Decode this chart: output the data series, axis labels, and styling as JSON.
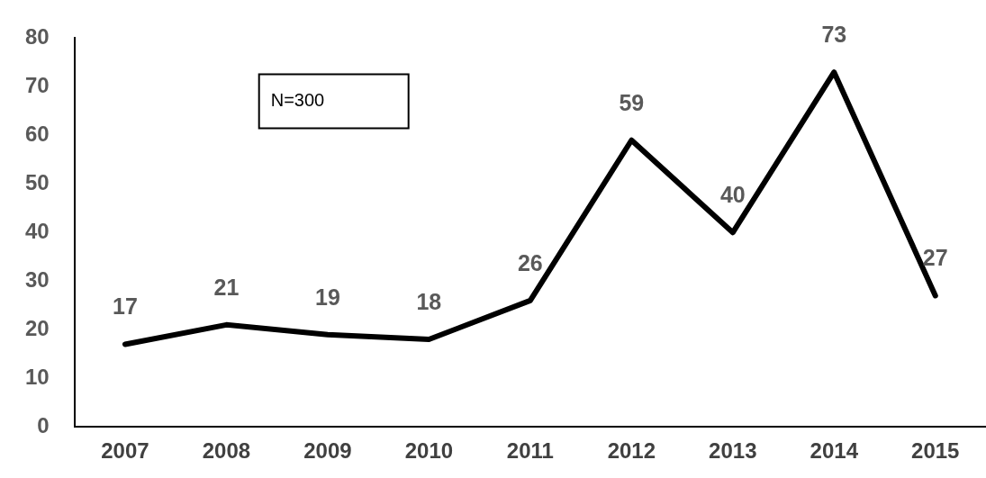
{
  "chart_data": {
    "type": "line",
    "categories": [
      "2007",
      "2008",
      "2009",
      "2010",
      "2011",
      "2012",
      "2013",
      "2014",
      "2015"
    ],
    "series": [
      {
        "color": "#000000",
        "values": [
          17,
          21,
          19,
          18,
          26,
          59,
          40,
          73,
          27
        ]
      }
    ],
    "ylim": [
      0,
      80
    ],
    "yticks": [
      0,
      10,
      20,
      30,
      40,
      50,
      60,
      70,
      80
    ],
    "grid": false,
    "legend": false,
    "marker": "none",
    "line_style": "solid",
    "data_labels": true,
    "annotations": [
      "N=300"
    ]
  }
}
